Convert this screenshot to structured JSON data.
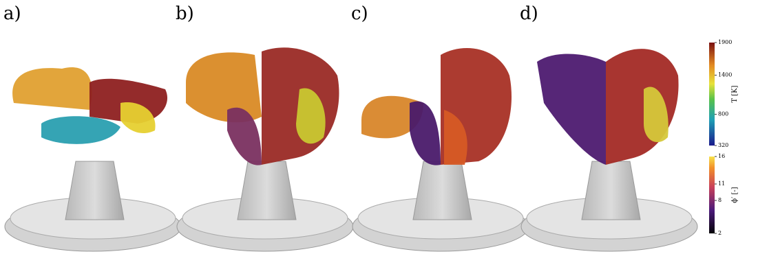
{
  "panels": [
    {
      "label": "a)"
    },
    {
      "label": "b)"
    },
    {
      "label": "c)"
    },
    {
      "label": "d)"
    }
  ],
  "colorbars": [
    {
      "label": "T [K]",
      "lim": [
        320,
        1900
      ],
      "ticks": [
        320,
        800,
        1400,
        1900
      ]
    },
    {
      "label": "ϕ′ [-]",
      "lim": [
        2,
        16
      ],
      "ticks": [
        2,
        8,
        11,
        16
      ]
    }
  ]
}
